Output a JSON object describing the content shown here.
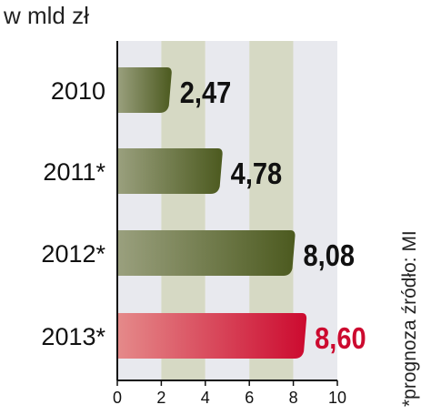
{
  "chart_data": {
    "type": "bar",
    "orientation": "horizontal",
    "unit_label": "w mld zł",
    "source_note": "*prognoza źródło: MI",
    "categories": [
      "2010",
      "2011*",
      "2012*",
      "2013*"
    ],
    "values": [
      2.47,
      4.78,
      8.08,
      8.6
    ],
    "value_labels": [
      "2,47",
      "4,78",
      "8,08",
      "8,60"
    ],
    "highlight_index": 3,
    "xlim": [
      0,
      10
    ],
    "xticks": [
      0,
      2,
      4,
      6,
      8,
      10
    ],
    "grid": "alternating vertical bands",
    "colors": {
      "bar_light": "#9aa07e",
      "bar_dark": "#4c5a1f",
      "highlight_light": "#e58a8a",
      "highlight_dark": "#cc0a2f",
      "label_default": "#111111",
      "label_highlight": "#cc0a2f",
      "band_a": "#e8e9ee",
      "band_b": "#d6d9c4",
      "axis": "#111111"
    }
  }
}
